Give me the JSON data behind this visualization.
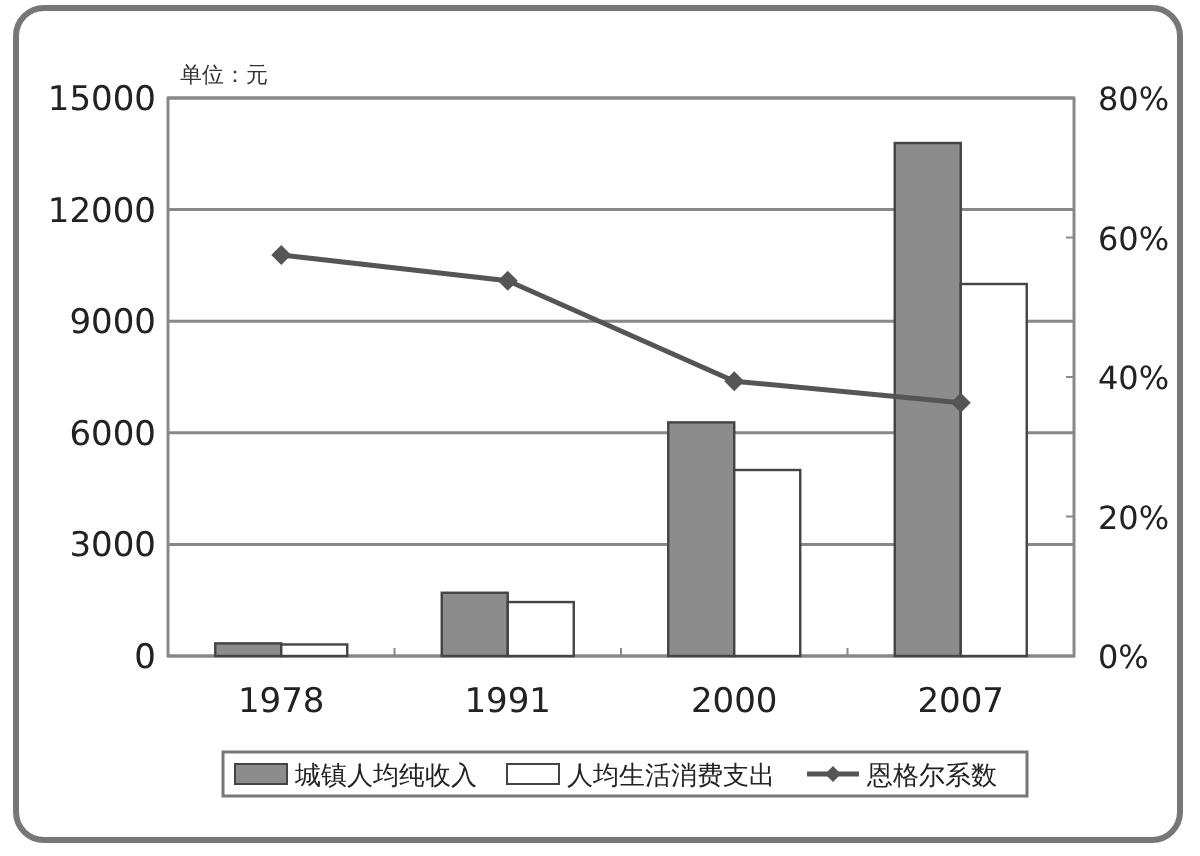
{
  "chart_data": {
    "type": "bar",
    "ylabel": "单位：元",
    "categories": [
      "1978",
      "1991",
      "2000",
      "2007"
    ],
    "series": [
      {
        "name": "城镇人均纯收入",
        "color": "#8c8c8c",
        "values": [
          340,
          1700,
          6280,
          13790
        ]
      },
      {
        "name": "人均生活消费支出",
        "color": "#ffffff",
        "values": [
          310,
          1450,
          5000,
          10000
        ]
      },
      {
        "name": "恩格尔系数",
        "type": "line",
        "axis": "y2",
        "color": "#555555",
        "marker": "diamond",
        "values": [
          57.5,
          53.8,
          39.4,
          36.3
        ]
      }
    ],
    "ylim": [
      0,
      15000
    ],
    "yticks": [
      0,
      3000,
      6000,
      9000,
      12000,
      15000
    ],
    "y2lim": [
      0,
      80
    ],
    "y2ticks": [
      {
        "value": 0,
        "label": "0%"
      },
      {
        "value": 20,
        "label": "20%"
      },
      {
        "value": 40,
        "label": "40%"
      },
      {
        "value": 60,
        "label": "60%"
      },
      {
        "value": 80,
        "label": "80%"
      }
    ],
    "grid": "y",
    "legend": "bottom"
  }
}
